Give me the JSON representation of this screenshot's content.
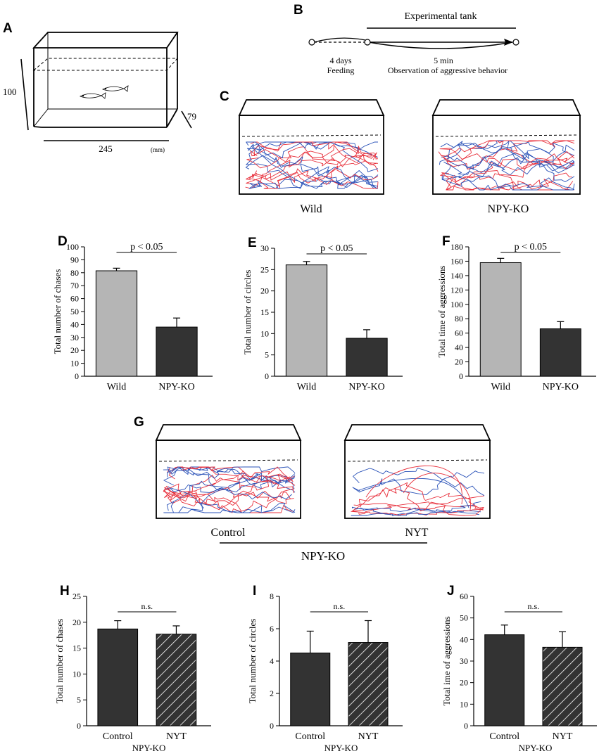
{
  "panel_labels": {
    "A": "A",
    "B": "B",
    "C": "C",
    "D": "D",
    "E": "E",
    "F": "F",
    "G": "G",
    "H": "H",
    "I": "I",
    "J": "J"
  },
  "panel_a": {
    "height": "100",
    "depth": "79",
    "width": "245",
    "unit": "(mm)"
  },
  "panel_b": {
    "tank_label": "Experimental tank",
    "stage1_line1": "4 days",
    "stage1_line2": "Feeding",
    "stage2_line1": "5 min",
    "stage2_line2": "Observation of aggressive behavior"
  },
  "panel_c": {
    "left_label": "Wild",
    "right_label": "NPY-KO"
  },
  "panel_g": {
    "left_label": "Control",
    "right_label": "NYT",
    "group_label": "NPY-KO"
  },
  "colors": {
    "gray_bar": "#b5b5b5",
    "dark_bar": "#333333",
    "trace_red": "#e8303c",
    "trace_blue": "#2a52b8"
  },
  "chart_data": [
    {
      "id": "D",
      "type": "bar",
      "title": "",
      "xlabel": "",
      "ylabel": "Total number of chases",
      "categories": [
        "Wild",
        "NPY-KO"
      ],
      "values": [
        81.5,
        38
      ],
      "errors": [
        2,
        7
      ],
      "ylim": [
        0,
        100
      ],
      "ticks": [
        "0",
        "10",
        "20",
        "30",
        "40",
        "50",
        "60",
        "70",
        "80",
        "90",
        "100"
      ],
      "significance": "p < 0.05",
      "styles": [
        "gray",
        "dark"
      ],
      "group_label": ""
    },
    {
      "id": "E",
      "type": "bar",
      "title": "",
      "xlabel": "",
      "ylabel": "Total number of circles",
      "categories": [
        "Wild",
        "NPY-KO"
      ],
      "values": [
        26.1,
        8.9
      ],
      "errors": [
        0.8,
        2
      ],
      "ylim": [
        0,
        30
      ],
      "ticks": [
        "0",
        "5",
        "10",
        "15",
        "20",
        "25",
        "30"
      ],
      "significance": "p < 0.05",
      "styles": [
        "gray",
        "dark"
      ],
      "group_label": ""
    },
    {
      "id": "F",
      "type": "bar",
      "title": "",
      "xlabel": "",
      "ylabel": "Total time of aggressions",
      "categories": [
        "Wild",
        "NPY-KO"
      ],
      "values": [
        158,
        66
      ],
      "errors": [
        6,
        10
      ],
      "ylim": [
        0,
        180
      ],
      "ticks": [
        "0",
        "20",
        "40",
        "60",
        "80",
        "100",
        "120",
        "140",
        "160",
        "180"
      ],
      "significance": "p < 0.05",
      "styles": [
        "gray",
        "dark"
      ],
      "group_label": ""
    },
    {
      "id": "H",
      "type": "bar",
      "title": "",
      "xlabel": "",
      "ylabel": "Total number of chases",
      "categories": [
        "Control",
        "NYT"
      ],
      "values": [
        18.7,
        17.7
      ],
      "errors": [
        1.6,
        1.6
      ],
      "ylim": [
        0,
        25
      ],
      "ticks": [
        "0",
        "5",
        "10",
        "15",
        "20",
        "25"
      ],
      "significance": "n.s.",
      "styles": [
        "dark",
        "hatch"
      ],
      "group_label": "NPY-KO"
    },
    {
      "id": "I",
      "type": "bar",
      "title": "",
      "xlabel": "",
      "ylabel": "Total number of circles",
      "categories": [
        "Control",
        "NYT"
      ],
      "values": [
        4.5,
        5.15
      ],
      "errors": [
        1.35,
        1.35
      ],
      "ylim": [
        0,
        8
      ],
      "ticks": [
        "0",
        "2",
        "4",
        "6",
        "8"
      ],
      "significance": "n.s.",
      "styles": [
        "dark",
        "hatch"
      ],
      "group_label": "NPY-KO"
    },
    {
      "id": "J",
      "type": "bar",
      "title": "",
      "xlabel": "",
      "ylabel": "Total ime of aggressions",
      "categories": [
        "Control",
        "NYT"
      ],
      "values": [
        42.2,
        36.4
      ],
      "errors": [
        4.5,
        7.2
      ],
      "ylim": [
        0,
        60
      ],
      "ticks": [
        "0",
        "10",
        "20",
        "30",
        "40",
        "50",
        "60"
      ],
      "significance": "n.s.",
      "styles": [
        "dark",
        "hatch"
      ],
      "group_label": "NPY-KO"
    }
  ]
}
